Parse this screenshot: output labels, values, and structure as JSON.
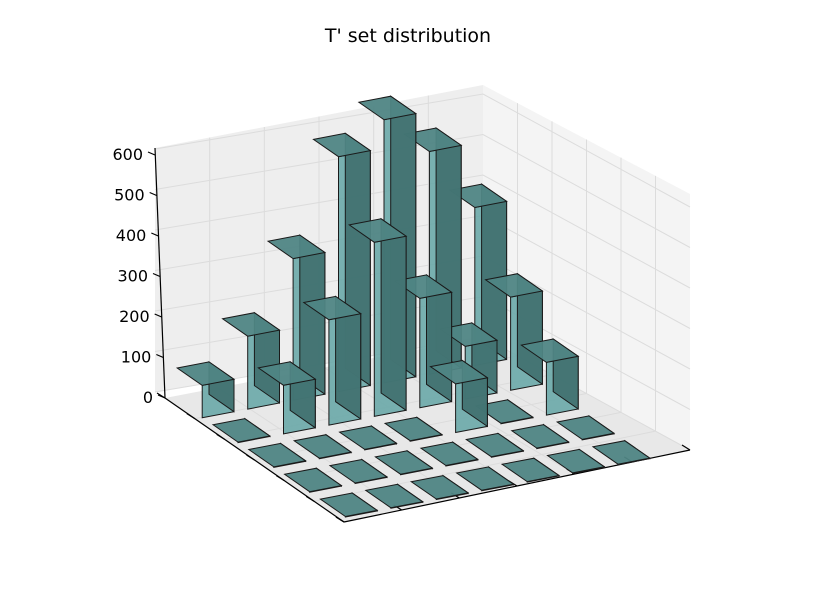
{
  "chart_data": {
    "type": "bar3d",
    "title": "T' set distribution",
    "xlabel": "",
    "ylabel": "",
    "zlabel": "",
    "zlim": [
      0,
      600
    ],
    "z_ticks": [
      "0",
      "100",
      "200",
      "300",
      "400",
      "500",
      "600"
    ],
    "grid": true,
    "rows": 5,
    "cols": 7,
    "values": [
      [
        80,
        180,
        350,
        580,
        650,
        550,
        390
      ],
      [
        0,
        120,
        260,
        430,
        270,
        130,
        230
      ],
      [
        0,
        0,
        0,
        0,
        120,
        0,
        130
      ],
      [
        0,
        0,
        0,
        0,
        0,
        0,
        0
      ],
      [
        0,
        0,
        0,
        0,
        0,
        0,
        0
      ]
    ],
    "bar_color": "#6fb1b0"
  }
}
